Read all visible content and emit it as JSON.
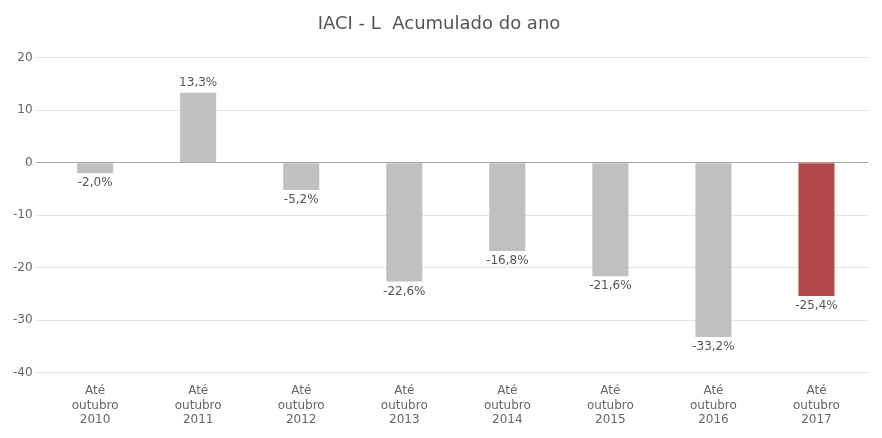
{
  "chart_data": {
    "type": "bar",
    "title": "IACI - L  Acumulado do ano",
    "categories": [
      "Até\noutubro\n2010",
      "Até\noutubro\n2011",
      "Até\noutubro\n2012",
      "Até\noutubro\n2013",
      "Até\noutubro\n2014",
      "Até\noutubro\n2015",
      "Até\noutubro\n2016",
      "Até\noutubro\n2017"
    ],
    "values": [
      -2.0,
      13.3,
      -5.2,
      -22.6,
      -16.8,
      -21.6,
      -33.2,
      -25.4
    ],
    "value_labels": [
      "-2,0%",
      "13,3%",
      "-5,2%",
      "-22,6%",
      "-16,8%",
      "-21,6%",
      "-33,2%",
      "-25,4%"
    ],
    "colors": [
      "#c0c0c0",
      "#c0c0c0",
      "#c0c0c0",
      "#c0c0c0",
      "#c0c0c0",
      "#c0c0c0",
      "#c0c0c0",
      "#b34a4a"
    ],
    "ylim": [
      -40,
      20
    ],
    "yticks": [
      -40,
      -30,
      -20,
      -10,
      0,
      10,
      20
    ],
    "grid": true,
    "data_labels": true
  }
}
